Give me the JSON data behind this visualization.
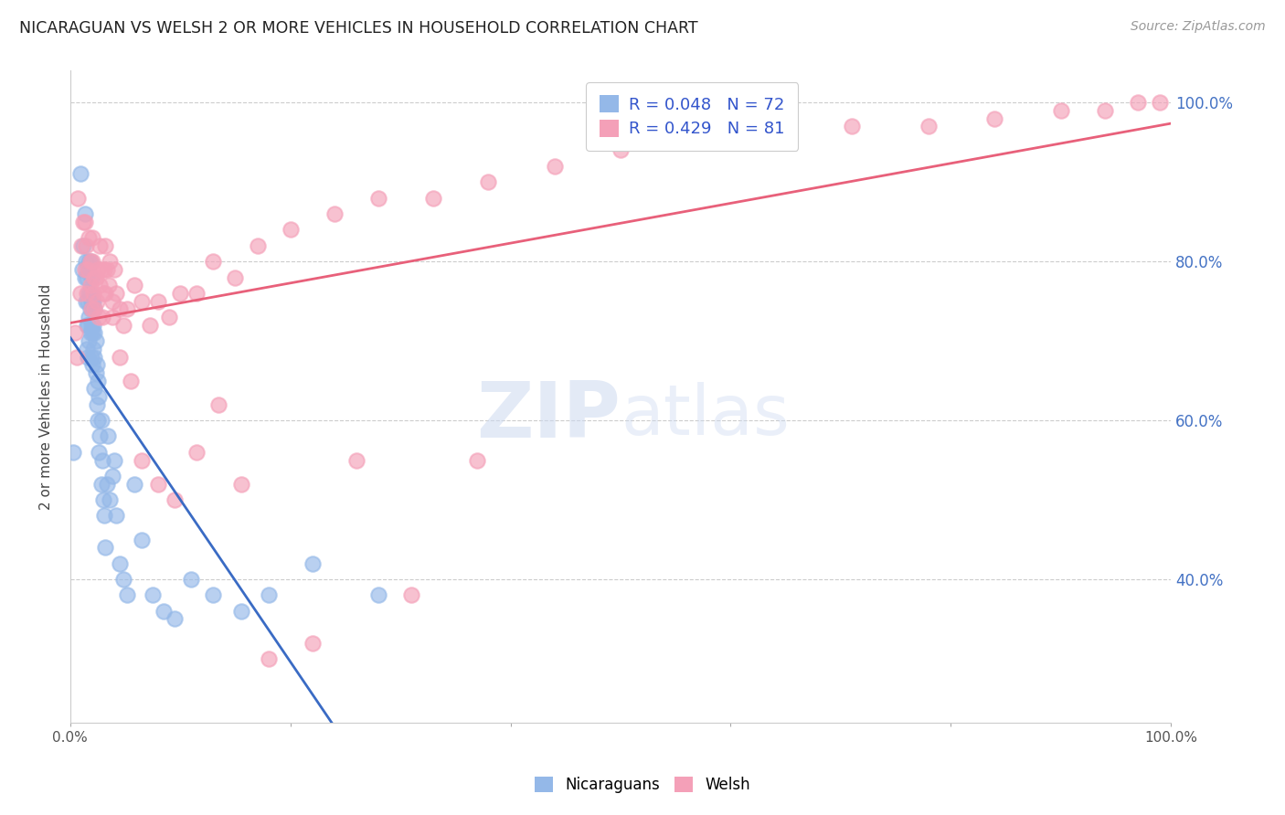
{
  "title": "NICARAGUAN VS WELSH 2 OR MORE VEHICLES IN HOUSEHOLD CORRELATION CHART",
  "source": "Source: ZipAtlas.com",
  "ylabel": "2 or more Vehicles in Household",
  "xlim": [
    0,
    1.0
  ],
  "ylim": [
    0.22,
    1.04
  ],
  "ytick_labels": [
    "40.0%",
    "60.0%",
    "80.0%",
    "100.0%"
  ],
  "ytick_values": [
    0.4,
    0.6,
    0.8,
    1.0
  ],
  "legend_labels": [
    "Nicaraguans",
    "Welsh"
  ],
  "R_nicaraguan": 0.048,
  "N_nicaraguan": 72,
  "R_welsh": 0.429,
  "N_welsh": 81,
  "color_nicaraguan": "#94b8e8",
  "color_welsh": "#f4a0b8",
  "color_trend_nicaraguan": "#3a6bc4",
  "color_trend_welsh": "#e8607a",
  "watermark_zip": "ZIP",
  "watermark_atlas": "atlas",
  "background_color": "#ffffff",
  "grid_color": "#cccccc",
  "nicaraguan_x": [
    0.003,
    0.009,
    0.011,
    0.012,
    0.013,
    0.013,
    0.014,
    0.014,
    0.015,
    0.015,
    0.015,
    0.016,
    0.016,
    0.016,
    0.016,
    0.017,
    0.017,
    0.017,
    0.017,
    0.018,
    0.018,
    0.018,
    0.018,
    0.019,
    0.019,
    0.019,
    0.019,
    0.02,
    0.02,
    0.02,
    0.021,
    0.021,
    0.021,
    0.022,
    0.022,
    0.022,
    0.022,
    0.023,
    0.023,
    0.024,
    0.024,
    0.025,
    0.025,
    0.026,
    0.026,
    0.027,
    0.028,
    0.028,
    0.029,
    0.03,
    0.031,
    0.032,
    0.033,
    0.034,
    0.036,
    0.038,
    0.04,
    0.042,
    0.045,
    0.048,
    0.052,
    0.058,
    0.065,
    0.075,
    0.085,
    0.095,
    0.11,
    0.13,
    0.155,
    0.18,
    0.22,
    0.28
  ],
  "nicaraguan_y": [
    0.56,
    0.91,
    0.79,
    0.82,
    0.78,
    0.86,
    0.75,
    0.8,
    0.69,
    0.72,
    0.78,
    0.68,
    0.72,
    0.75,
    0.79,
    0.7,
    0.73,
    0.76,
    0.8,
    0.71,
    0.74,
    0.76,
    0.8,
    0.68,
    0.72,
    0.75,
    0.78,
    0.67,
    0.71,
    0.75,
    0.69,
    0.72,
    0.75,
    0.64,
    0.68,
    0.71,
    0.74,
    0.66,
    0.7,
    0.62,
    0.67,
    0.6,
    0.65,
    0.56,
    0.63,
    0.58,
    0.52,
    0.6,
    0.55,
    0.5,
    0.48,
    0.44,
    0.52,
    0.58,
    0.5,
    0.53,
    0.55,
    0.48,
    0.42,
    0.4,
    0.38,
    0.52,
    0.45,
    0.38,
    0.36,
    0.35,
    0.4,
    0.38,
    0.36,
    0.38,
    0.42,
    0.38
  ],
  "welsh_x": [
    0.004,
    0.007,
    0.01,
    0.012,
    0.013,
    0.014,
    0.015,
    0.016,
    0.017,
    0.018,
    0.019,
    0.02,
    0.02,
    0.021,
    0.022,
    0.023,
    0.024,
    0.025,
    0.026,
    0.027,
    0.028,
    0.029,
    0.03,
    0.031,
    0.032,
    0.033,
    0.035,
    0.036,
    0.038,
    0.04,
    0.042,
    0.045,
    0.048,
    0.052,
    0.058,
    0.065,
    0.072,
    0.08,
    0.09,
    0.1,
    0.115,
    0.13,
    0.15,
    0.17,
    0.2,
    0.24,
    0.28,
    0.33,
    0.38,
    0.44,
    0.5,
    0.57,
    0.64,
    0.71,
    0.78,
    0.84,
    0.9,
    0.94,
    0.97,
    0.99,
    0.006,
    0.009,
    0.013,
    0.018,
    0.022,
    0.027,
    0.032,
    0.038,
    0.045,
    0.055,
    0.065,
    0.08,
    0.095,
    0.115,
    0.135,
    0.155,
    0.18,
    0.22,
    0.26,
    0.31,
    0.37
  ],
  "welsh_y": [
    0.71,
    0.88,
    0.82,
    0.85,
    0.79,
    0.82,
    0.76,
    0.79,
    0.83,
    0.77,
    0.74,
    0.8,
    0.83,
    0.76,
    0.74,
    0.78,
    0.75,
    0.79,
    0.73,
    0.77,
    0.79,
    0.73,
    0.76,
    0.79,
    0.82,
    0.79,
    0.77,
    0.8,
    0.75,
    0.79,
    0.76,
    0.74,
    0.72,
    0.74,
    0.77,
    0.75,
    0.72,
    0.75,
    0.73,
    0.76,
    0.76,
    0.8,
    0.78,
    0.82,
    0.84,
    0.86,
    0.88,
    0.88,
    0.9,
    0.92,
    0.94,
    0.95,
    0.96,
    0.97,
    0.97,
    0.98,
    0.99,
    0.99,
    1.0,
    1.0,
    0.68,
    0.76,
    0.85,
    0.8,
    0.78,
    0.82,
    0.76,
    0.73,
    0.68,
    0.65,
    0.55,
    0.52,
    0.5,
    0.56,
    0.62,
    0.52,
    0.3,
    0.32,
    0.55,
    0.38,
    0.55
  ]
}
